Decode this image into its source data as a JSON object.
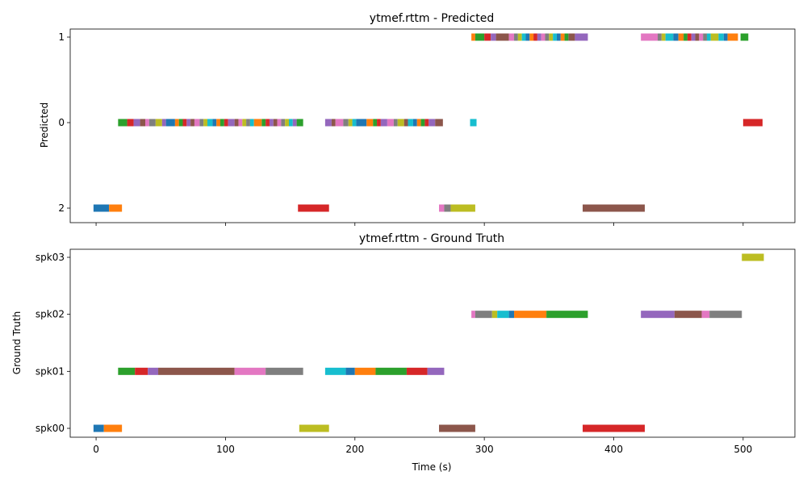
{
  "palette": [
    "#1f77b4",
    "#ff7f0e",
    "#2ca02c",
    "#d62728",
    "#9467bd",
    "#8c564b",
    "#e377c2",
    "#7f7f7f",
    "#bcbd22",
    "#17becf"
  ],
  "chart_data": [
    {
      "type": "timeline",
      "title": "ytmef.rttm - Predicted",
      "ylabel": "Predicted",
      "xlabel": "",
      "xlim": [
        -20,
        540
      ],
      "xticks": [
        0,
        100,
        200,
        300,
        400,
        500
      ],
      "show_xtick_labels": false,
      "y_categories": [
        "1",
        "0",
        "2"
      ],
      "segments": [
        {
          "row": "2",
          "start": -2,
          "end": 10,
          "color": "#1f77b4"
        },
        {
          "row": "2",
          "start": 10,
          "end": 20,
          "color": "#ff7f0e"
        },
        {
          "row": "2",
          "start": 156,
          "end": 180,
          "color": "#d62728"
        },
        {
          "row": "2",
          "start": 265,
          "end": 269,
          "color": "#e377c2"
        },
        {
          "row": "2",
          "start": 269,
          "end": 274,
          "color": "#7f7f7f"
        },
        {
          "row": "2",
          "start": 274,
          "end": 293,
          "color": "#bcbd22"
        },
        {
          "row": "2",
          "start": 376,
          "end": 424,
          "color": "#8c564b"
        },
        {
          "row": "0",
          "start": 17,
          "end": 24,
          "color": "#2ca02c"
        },
        {
          "row": "0",
          "start": 24,
          "end": 29,
          "color": "#d62728"
        },
        {
          "row": "0",
          "start": 29,
          "end": 34,
          "color": "#9467bd"
        },
        {
          "row": "0",
          "start": 34,
          "end": 38,
          "color": "#8c564b"
        },
        {
          "row": "0",
          "start": 38,
          "end": 41,
          "color": "#e377c2"
        },
        {
          "row": "0",
          "start": 41,
          "end": 46,
          "color": "#7f7f7f"
        },
        {
          "row": "0",
          "start": 46,
          "end": 51,
          "color": "#bcbd22"
        },
        {
          "row": "0",
          "start": 51,
          "end": 54,
          "color": "#9467bd"
        },
        {
          "row": "0",
          "start": 54,
          "end": 61,
          "color": "#1f77b4"
        },
        {
          "row": "0",
          "start": 61,
          "end": 64,
          "color": "#ff7f0e"
        },
        {
          "row": "0",
          "start": 64,
          "end": 67,
          "color": "#2ca02c"
        },
        {
          "row": "0",
          "start": 67,
          "end": 70,
          "color": "#d62728"
        },
        {
          "row": "0",
          "start": 70,
          "end": 73,
          "color": "#9467bd"
        },
        {
          "row": "0",
          "start": 73,
          "end": 76,
          "color": "#8c564b"
        },
        {
          "row": "0",
          "start": 76,
          "end": 80,
          "color": "#e377c2"
        },
        {
          "row": "0",
          "start": 80,
          "end": 83,
          "color": "#7f7f7f"
        },
        {
          "row": "0",
          "start": 83,
          "end": 86,
          "color": "#bcbd22"
        },
        {
          "row": "0",
          "start": 86,
          "end": 90,
          "color": "#17becf"
        },
        {
          "row": "0",
          "start": 90,
          "end": 93,
          "color": "#1f77b4"
        },
        {
          "row": "0",
          "start": 93,
          "end": 96,
          "color": "#ff7f0e"
        },
        {
          "row": "0",
          "start": 96,
          "end": 99,
          "color": "#2ca02c"
        },
        {
          "row": "0",
          "start": 99,
          "end": 102,
          "color": "#d62728"
        },
        {
          "row": "0",
          "start": 102,
          "end": 107,
          "color": "#9467bd"
        },
        {
          "row": "0",
          "start": 107,
          "end": 110,
          "color": "#8c564b"
        },
        {
          "row": "0",
          "start": 110,
          "end": 113,
          "color": "#e377c2"
        },
        {
          "row": "0",
          "start": 113,
          "end": 116,
          "color": "#bcbd22"
        },
        {
          "row": "0",
          "start": 116,
          "end": 119,
          "color": "#7f7f7f"
        },
        {
          "row": "0",
          "start": 119,
          "end": 122,
          "color": "#17becf"
        },
        {
          "row": "0",
          "start": 122,
          "end": 128,
          "color": "#ff7f0e"
        },
        {
          "row": "0",
          "start": 128,
          "end": 131,
          "color": "#2ca02c"
        },
        {
          "row": "0",
          "start": 131,
          "end": 134,
          "color": "#d62728"
        },
        {
          "row": "0",
          "start": 134,
          "end": 137,
          "color": "#9467bd"
        },
        {
          "row": "0",
          "start": 137,
          "end": 140,
          "color": "#8c564b"
        },
        {
          "row": "0",
          "start": 140,
          "end": 143,
          "color": "#e377c2"
        },
        {
          "row": "0",
          "start": 143,
          "end": 146,
          "color": "#7f7f7f"
        },
        {
          "row": "0",
          "start": 146,
          "end": 149,
          "color": "#bcbd22"
        },
        {
          "row": "0",
          "start": 149,
          "end": 152,
          "color": "#17becf"
        },
        {
          "row": "0",
          "start": 152,
          "end": 155,
          "color": "#9467bd"
        },
        {
          "row": "0",
          "start": 155,
          "end": 160,
          "color": "#2ca02c"
        },
        {
          "row": "0",
          "start": 177,
          "end": 182,
          "color": "#9467bd"
        },
        {
          "row": "0",
          "start": 182,
          "end": 185,
          "color": "#8c564b"
        },
        {
          "row": "0",
          "start": 185,
          "end": 191,
          "color": "#e377c2"
        },
        {
          "row": "0",
          "start": 191,
          "end": 195,
          "color": "#7f7f7f"
        },
        {
          "row": "0",
          "start": 195,
          "end": 198,
          "color": "#bcbd22"
        },
        {
          "row": "0",
          "start": 198,
          "end": 201,
          "color": "#17becf"
        },
        {
          "row": "0",
          "start": 201,
          "end": 209,
          "color": "#1f77b4"
        },
        {
          "row": "0",
          "start": 209,
          "end": 214,
          "color": "#ff7f0e"
        },
        {
          "row": "0",
          "start": 214,
          "end": 217,
          "color": "#2ca02c"
        },
        {
          "row": "0",
          "start": 217,
          "end": 220,
          "color": "#d62728"
        },
        {
          "row": "0",
          "start": 220,
          "end": 225,
          "color": "#9467bd"
        },
        {
          "row": "0",
          "start": 225,
          "end": 230,
          "color": "#e377c2"
        },
        {
          "row": "0",
          "start": 230,
          "end": 233,
          "color": "#7f7f7f"
        },
        {
          "row": "0",
          "start": 233,
          "end": 238,
          "color": "#bcbd22"
        },
        {
          "row": "0",
          "start": 238,
          "end": 241,
          "color": "#8c564b"
        },
        {
          "row": "0",
          "start": 241,
          "end": 245,
          "color": "#17becf"
        },
        {
          "row": "0",
          "start": 245,
          "end": 248,
          "color": "#1f77b4"
        },
        {
          "row": "0",
          "start": 248,
          "end": 251,
          "color": "#ff7f0e"
        },
        {
          "row": "0",
          "start": 251,
          "end": 254,
          "color": "#2ca02c"
        },
        {
          "row": "0",
          "start": 254,
          "end": 257,
          "color": "#d62728"
        },
        {
          "row": "0",
          "start": 257,
          "end": 262,
          "color": "#9467bd"
        },
        {
          "row": "0",
          "start": 262,
          "end": 268,
          "color": "#8c564b"
        },
        {
          "row": "0",
          "start": 289,
          "end": 294,
          "color": "#17becf"
        },
        {
          "row": "0",
          "start": 500,
          "end": 515,
          "color": "#d62728"
        },
        {
          "row": "1",
          "start": 290,
          "end": 293,
          "color": "#ff7f0e"
        },
        {
          "row": "1",
          "start": 293,
          "end": 300,
          "color": "#2ca02c"
        },
        {
          "row": "1",
          "start": 300,
          "end": 305,
          "color": "#d62728"
        },
        {
          "row": "1",
          "start": 305,
          "end": 309,
          "color": "#9467bd"
        },
        {
          "row": "1",
          "start": 309,
          "end": 319,
          "color": "#8c564b"
        },
        {
          "row": "1",
          "start": 319,
          "end": 323,
          "color": "#e377c2"
        },
        {
          "row": "1",
          "start": 323,
          "end": 326,
          "color": "#7f7f7f"
        },
        {
          "row": "1",
          "start": 326,
          "end": 329,
          "color": "#bcbd22"
        },
        {
          "row": "1",
          "start": 329,
          "end": 332,
          "color": "#17becf"
        },
        {
          "row": "1",
          "start": 332,
          "end": 335,
          "color": "#1f77b4"
        },
        {
          "row": "1",
          "start": 335,
          "end": 338,
          "color": "#ff7f0e"
        },
        {
          "row": "1",
          "start": 338,
          "end": 341,
          "color": "#d62728"
        },
        {
          "row": "1",
          "start": 341,
          "end": 344,
          "color": "#9467bd"
        },
        {
          "row": "1",
          "start": 344,
          "end": 347,
          "color": "#e377c2"
        },
        {
          "row": "1",
          "start": 347,
          "end": 350,
          "color": "#7f7f7f"
        },
        {
          "row": "1",
          "start": 350,
          "end": 353,
          "color": "#bcbd22"
        },
        {
          "row": "1",
          "start": 353,
          "end": 356,
          "color": "#17becf"
        },
        {
          "row": "1",
          "start": 356,
          "end": 359,
          "color": "#1f77b4"
        },
        {
          "row": "1",
          "start": 359,
          "end": 362,
          "color": "#ff7f0e"
        },
        {
          "row": "1",
          "start": 362,
          "end": 365,
          "color": "#2ca02c"
        },
        {
          "row": "1",
          "start": 365,
          "end": 370,
          "color": "#8c564b"
        },
        {
          "row": "1",
          "start": 370,
          "end": 380,
          "color": "#9467bd"
        },
        {
          "row": "1",
          "start": 421,
          "end": 434,
          "color": "#e377c2"
        },
        {
          "row": "1",
          "start": 434,
          "end": 437,
          "color": "#7f7f7f"
        },
        {
          "row": "1",
          "start": 437,
          "end": 440,
          "color": "#bcbd22"
        },
        {
          "row": "1",
          "start": 440,
          "end": 446,
          "color": "#17becf"
        },
        {
          "row": "1",
          "start": 446,
          "end": 450,
          "color": "#1f77b4"
        },
        {
          "row": "1",
          "start": 450,
          "end": 454,
          "color": "#ff7f0e"
        },
        {
          "row": "1",
          "start": 454,
          "end": 457,
          "color": "#2ca02c"
        },
        {
          "row": "1",
          "start": 457,
          "end": 460,
          "color": "#d62728"
        },
        {
          "row": "1",
          "start": 460,
          "end": 463,
          "color": "#9467bd"
        },
        {
          "row": "1",
          "start": 463,
          "end": 466,
          "color": "#8c564b"
        },
        {
          "row": "1",
          "start": 466,
          "end": 469,
          "color": "#e377c2"
        },
        {
          "row": "1",
          "start": 469,
          "end": 472,
          "color": "#7f7f7f"
        },
        {
          "row": "1",
          "start": 472,
          "end": 475,
          "color": "#17becf"
        },
        {
          "row": "1",
          "start": 475,
          "end": 481,
          "color": "#bcbd22"
        },
        {
          "row": "1",
          "start": 481,
          "end": 485,
          "color": "#17becf"
        },
        {
          "row": "1",
          "start": 485,
          "end": 488,
          "color": "#1f77b4"
        },
        {
          "row": "1",
          "start": 488,
          "end": 496,
          "color": "#ff7f0e"
        },
        {
          "row": "1",
          "start": 498,
          "end": 504,
          "color": "#2ca02c"
        }
      ]
    },
    {
      "type": "timeline",
      "title": "ytmef.rttm - Ground Truth",
      "ylabel": "Ground Truth",
      "xlabel": "Time (s)",
      "xlim": [
        -20,
        540
      ],
      "xticks": [
        0,
        100,
        200,
        300,
        400,
        500
      ],
      "show_xtick_labels": true,
      "y_categories": [
        "spk03",
        "spk02",
        "spk01",
        "spk00"
      ],
      "segments": [
        {
          "row": "spk00",
          "start": -2,
          "end": 6,
          "color": "#1f77b4"
        },
        {
          "row": "spk00",
          "start": 6,
          "end": 20,
          "color": "#ff7f0e"
        },
        {
          "row": "spk00",
          "start": 157,
          "end": 180,
          "color": "#bcbd22"
        },
        {
          "row": "spk00",
          "start": 265,
          "end": 293,
          "color": "#8c564b"
        },
        {
          "row": "spk00",
          "start": 376,
          "end": 424,
          "color": "#d62728"
        },
        {
          "row": "spk01",
          "start": 17,
          "end": 30,
          "color": "#2ca02c"
        },
        {
          "row": "spk01",
          "start": 30,
          "end": 40,
          "color": "#d62728"
        },
        {
          "row": "spk01",
          "start": 40,
          "end": 48,
          "color": "#9467bd"
        },
        {
          "row": "spk01",
          "start": 48,
          "end": 107,
          "color": "#8c564b"
        },
        {
          "row": "spk01",
          "start": 107,
          "end": 131,
          "color": "#e377c2"
        },
        {
          "row": "spk01",
          "start": 131,
          "end": 160,
          "color": "#7f7f7f"
        },
        {
          "row": "spk01",
          "start": 177,
          "end": 193,
          "color": "#17becf"
        },
        {
          "row": "spk01",
          "start": 193,
          "end": 200,
          "color": "#1f77b4"
        },
        {
          "row": "spk01",
          "start": 200,
          "end": 216,
          "color": "#ff7f0e"
        },
        {
          "row": "spk01",
          "start": 216,
          "end": 240,
          "color": "#2ca02c"
        },
        {
          "row": "spk01",
          "start": 240,
          "end": 256,
          "color": "#d62728"
        },
        {
          "row": "spk01",
          "start": 256,
          "end": 269,
          "color": "#9467bd"
        },
        {
          "row": "spk02",
          "start": 290,
          "end": 293,
          "color": "#e377c2"
        },
        {
          "row": "spk02",
          "start": 293,
          "end": 306,
          "color": "#7f7f7f"
        },
        {
          "row": "spk02",
          "start": 306,
          "end": 310,
          "color": "#bcbd22"
        },
        {
          "row": "spk02",
          "start": 310,
          "end": 319,
          "color": "#17becf"
        },
        {
          "row": "spk02",
          "start": 319,
          "end": 323,
          "color": "#1f77b4"
        },
        {
          "row": "spk02",
          "start": 323,
          "end": 348,
          "color": "#ff7f0e"
        },
        {
          "row": "spk02",
          "start": 348,
          "end": 380,
          "color": "#2ca02c"
        },
        {
          "row": "spk02",
          "start": 421,
          "end": 447,
          "color": "#9467bd"
        },
        {
          "row": "spk02",
          "start": 447,
          "end": 468,
          "color": "#8c564b"
        },
        {
          "row": "spk02",
          "start": 468,
          "end": 474,
          "color": "#e377c2"
        },
        {
          "row": "spk02",
          "start": 474,
          "end": 499,
          "color": "#7f7f7f"
        },
        {
          "row": "spk03",
          "start": 499,
          "end": 516,
          "color": "#bcbd22"
        }
      ]
    }
  ]
}
